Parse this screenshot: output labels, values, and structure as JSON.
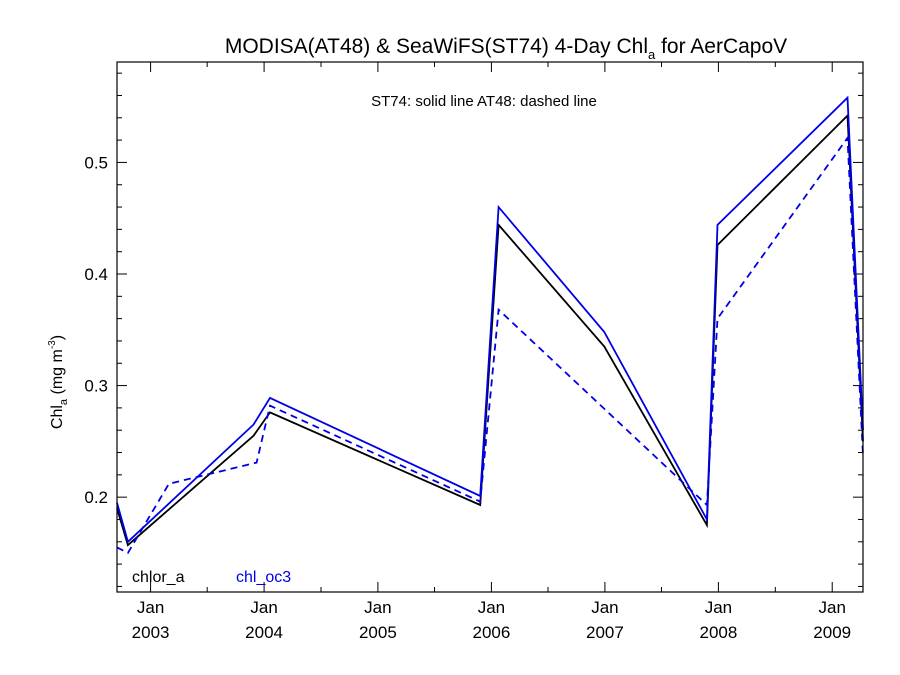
{
  "chart_data": {
    "type": "line",
    "title": "MODISA(AT48) & SeaWiFS(ST74) 4-Day Chl",
    "title_sub": "a",
    "title_suffix": " for AerCapoV",
    "annotation": "ST74: solid line   AT48: dashed line",
    "ylabel": "Chl",
    "ylabel_sub": "a",
    "ylabel_unit": " (mg m",
    "ylabel_sup": "-3",
    "ylabel_close": ")",
    "ylim": [
      0.115,
      0.59
    ],
    "yticks": [
      {
        "value": 0.2,
        "label": "0.2"
      },
      {
        "value": 0.3,
        "label": "0.3"
      },
      {
        "value": 0.4,
        "label": "0.4"
      },
      {
        "value": 0.5,
        "label": "0.5"
      }
    ],
    "xlim": [
      "2002-09-15",
      "2009-04-10"
    ],
    "xticks": [
      {
        "date": "2003-01-01",
        "month": "Jan",
        "year": "2003"
      },
      {
        "date": "2004-01-01",
        "month": "Jan",
        "year": "2004"
      },
      {
        "date": "2005-01-01",
        "month": "Jan",
        "year": "2005"
      },
      {
        "date": "2006-01-01",
        "month": "Jan",
        "year": "2006"
      },
      {
        "date": "2007-01-01",
        "month": "Jan",
        "year": "2007"
      },
      {
        "date": "2008-01-01",
        "month": "Jan",
        "year": "2008"
      },
      {
        "date": "2009-01-01",
        "month": "Jan",
        "year": "2009"
      }
    ],
    "legend": [
      {
        "label": "chlor_a",
        "color": "#000000"
      },
      {
        "label": "chl_oc3",
        "color": "#0000e6"
      }
    ],
    "series": [
      {
        "color": "#000000",
        "dash": false,
        "points": [
          [
            "2002-09-15",
            0.19
          ],
          [
            "2002-10-20",
            0.157
          ],
          [
            "2003-11-28",
            0.255
          ],
          [
            "2004-01-20",
            0.276
          ],
          [
            "2005-11-26",
            0.193
          ],
          [
            "2006-01-24",
            0.444
          ],
          [
            "2006-12-30",
            0.335
          ],
          [
            "2007-11-25",
            0.175
          ],
          [
            "2007-12-29",
            0.426
          ],
          [
            "2009-02-19",
            0.542
          ],
          [
            "2009-04-10",
            0.25
          ]
        ]
      },
      {
        "color": "#0000e6",
        "dash": false,
        "points": [
          [
            "2002-09-15",
            0.195
          ],
          [
            "2002-10-20",
            0.16
          ],
          [
            "2003-11-28",
            0.265
          ],
          [
            "2004-01-20",
            0.289
          ],
          [
            "2005-11-26",
            0.201
          ],
          [
            "2006-01-24",
            0.46
          ],
          [
            "2006-12-30",
            0.348
          ],
          [
            "2007-11-25",
            0.18
          ],
          [
            "2007-12-29",
            0.444
          ],
          [
            "2009-02-19",
            0.558
          ],
          [
            "2009-04-10",
            0.26
          ]
        ]
      },
      {
        "color": "#0000e6",
        "dash": true,
        "points": [
          [
            "2002-09-15",
            0.155
          ],
          [
            "2002-10-20",
            0.15
          ],
          [
            "2003-03-01",
            0.212
          ],
          [
            "2003-12-08",
            0.231
          ],
          [
            "2004-01-20",
            0.282
          ],
          [
            "2005-11-26",
            0.196
          ],
          [
            "2006-01-24",
            0.368
          ],
          [
            "2007-11-25",
            0.193
          ],
          [
            "2007-12-29",
            0.36
          ],
          [
            "2009-02-19",
            0.522
          ],
          [
            "2009-04-10",
            0.237
          ]
        ]
      }
    ]
  }
}
